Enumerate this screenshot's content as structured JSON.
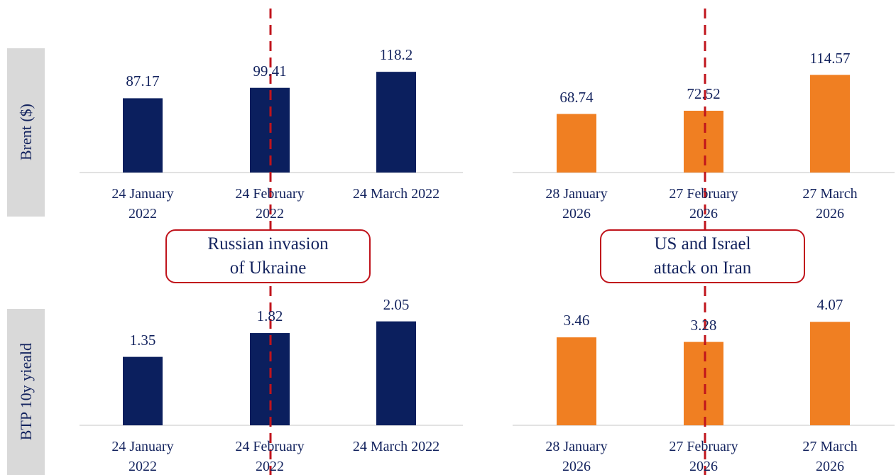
{
  "chart_data": [
    {
      "type": "bar",
      "ylabel": "Brent ($)",
      "annotation": "Russian invasion\nof Ukraine",
      "categories": [
        "24 January\n2022",
        "24 February\n2022",
        "24 March 2022"
      ],
      "values": [
        87.17,
        99.41,
        118.2
      ],
      "color": "#0b1f5e",
      "ylim": [
        0,
        200
      ]
    },
    {
      "type": "bar",
      "annotation": "US and Israel\nattack on Iran",
      "categories": [
        "28 January\n2026",
        "27 February\n2026",
        "27 March 2026"
      ],
      "values": [
        68.74,
        72.52,
        114.57
      ],
      "color": "#f07f22",
      "ylim": [
        0,
        200
      ]
    },
    {
      "type": "bar",
      "ylabel": "BTP 10y yieald",
      "categories": [
        "24 January\n2022",
        "24 February\n2022",
        "24 March 2022"
      ],
      "values": [
        1.35,
        1.82,
        2.05
      ],
      "color": "#0b1f5e",
      "ylim": [
        0,
        5
      ]
    },
    {
      "type": "bar",
      "categories": [
        "28 January\n2026",
        "27 February\n2026",
        "27 March 2026"
      ],
      "values": [
        3.46,
        3.28,
        4.07
      ],
      "color": "#f07f22",
      "ylim": [
        0,
        10
      ]
    }
  ]
}
